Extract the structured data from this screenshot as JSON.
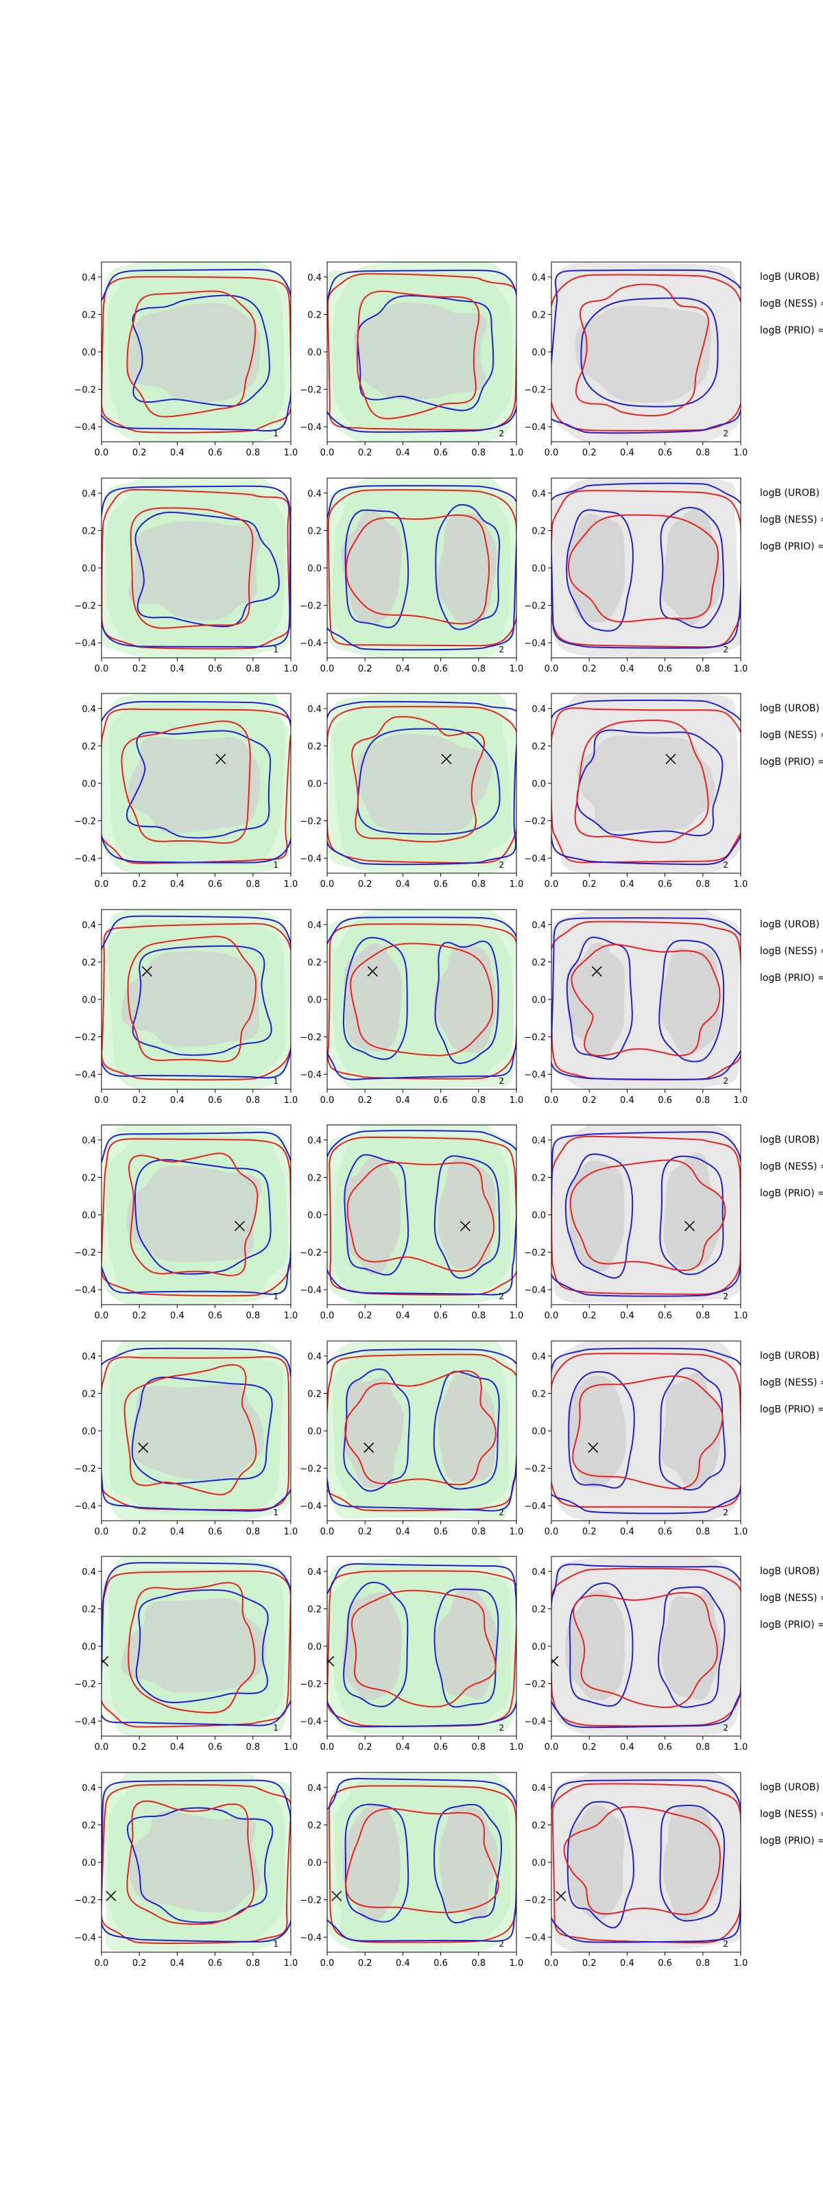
{
  "colors": {
    "green_fill": "#cdf2cd",
    "green_fill_outer": "#dcf7dc",
    "grey_fill": "#e8e8e8",
    "grey_inner": "#d0d0d0",
    "red": "#e8231d",
    "blue": "#1f1fd6",
    "axis": "#000000"
  },
  "text": {
    "row_labels": [
      "logB (UROB) =",
      "logB (NESS) =",
      "logB (PRIO) ="
    ],
    "panel_badges": [
      "1",
      "2",
      "2"
    ]
  },
  "chart_data": {
    "type": "contour-grid",
    "rows": 8,
    "cols": 3,
    "xlim": [
      0.0,
      1.0
    ],
    "ylim": [
      -0.48,
      0.48
    ],
    "xticks": [
      "0.0",
      "0.2",
      "0.4",
      "0.6",
      "0.8",
      "1.0"
    ],
    "yticks": [
      "0.4",
      "0.2",
      "0.0",
      "−0.2",
      "−0.4"
    ],
    "ytick_values": [
      0.4,
      0.2,
      0.0,
      -0.2,
      -0.4
    ],
    "xtick_values": [
      0.0,
      0.2,
      0.4,
      0.6,
      0.8,
      1.0
    ],
    "panel_backgrounds": [
      "green",
      "green",
      "grey"
    ],
    "markers": [
      null,
      null,
      {
        "x": 0.63,
        "y": 0.13
      },
      {
        "x": 0.24,
        "y": 0.15
      },
      {
        "x": 0.73,
        "y": -0.06
      },
      {
        "x": 0.22,
        "y": -0.09
      },
      {
        "x": 0.01,
        "y": -0.08
      },
      {
        "x": 0.05,
        "y": -0.18
      }
    ]
  }
}
